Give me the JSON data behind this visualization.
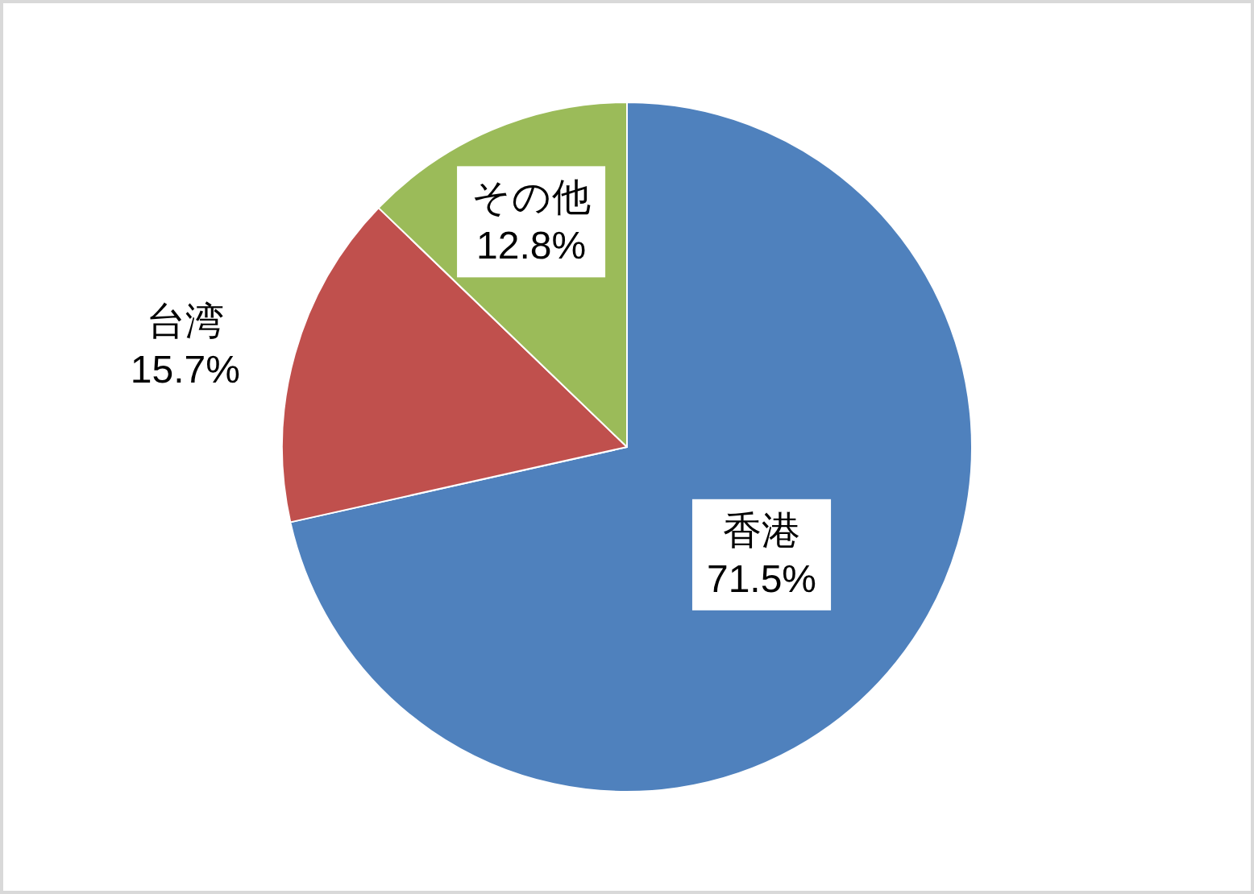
{
  "chart_data": {
    "type": "pie",
    "categories": [
      "香港",
      "台湾",
      "その他"
    ],
    "values": [
      71.5,
      15.7,
      12.8
    ],
    "colors": [
      "#4f81bd",
      "#c0504d",
      "#9bbb59"
    ],
    "value_labels": [
      "71.5%",
      "15.7%",
      "12.8%"
    ]
  }
}
